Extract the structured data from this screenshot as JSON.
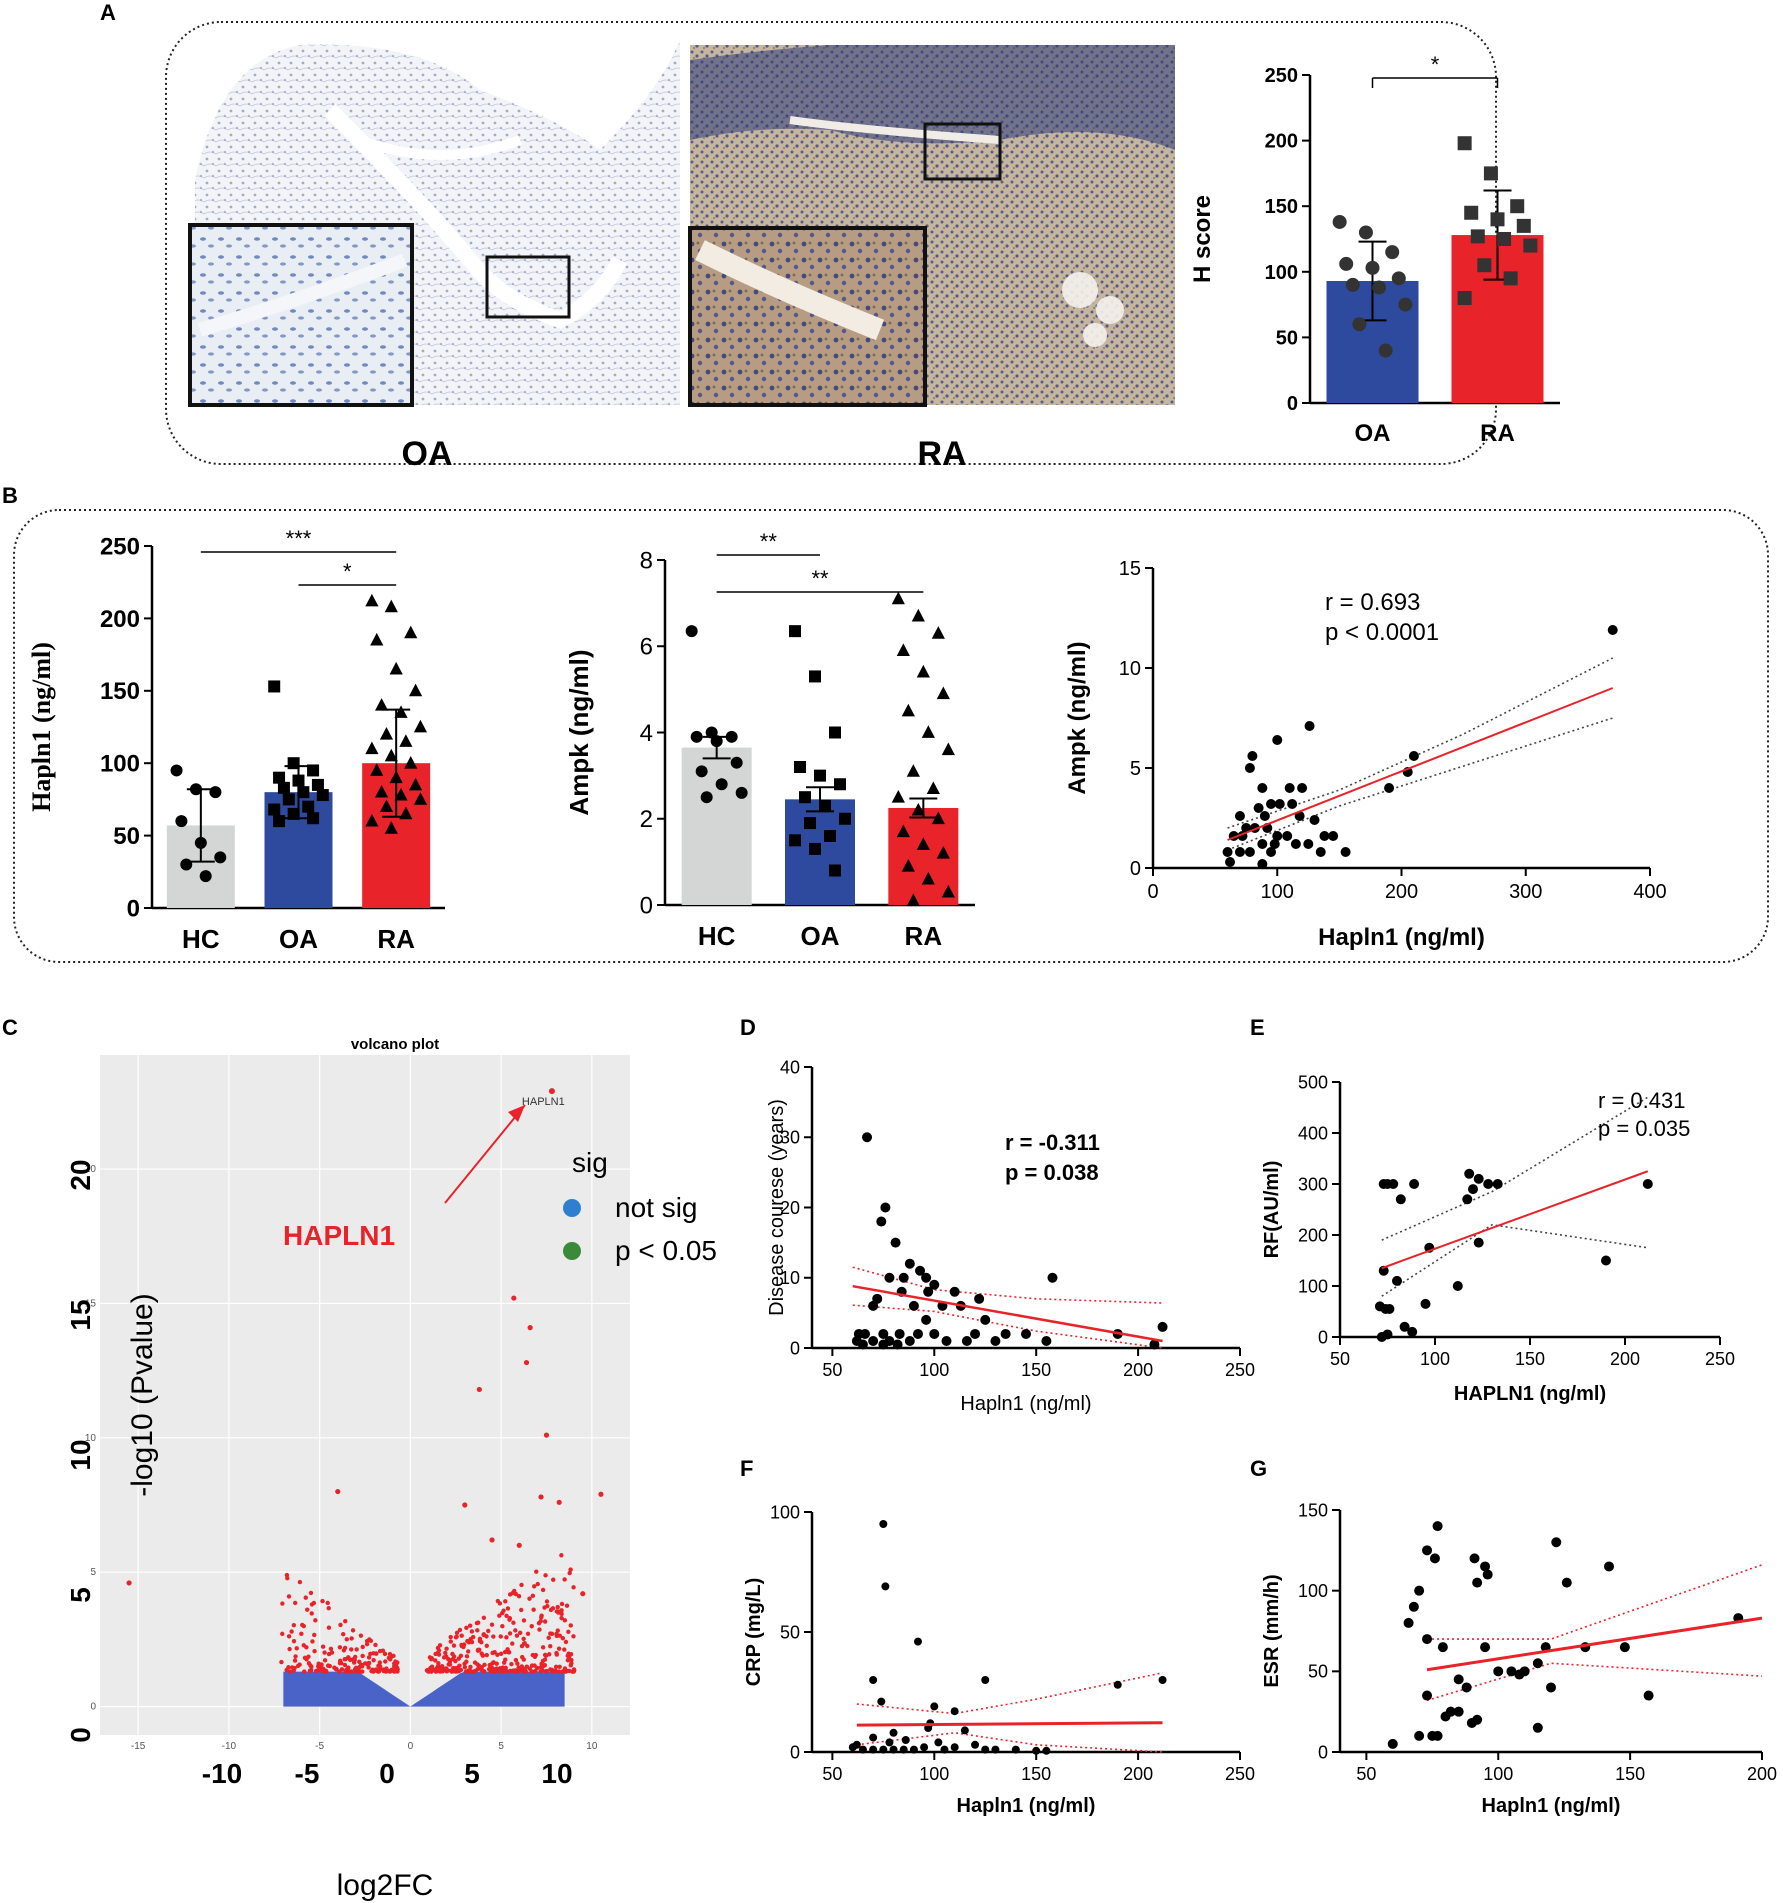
{
  "panel_letters": {
    "A": "A",
    "B": "B",
    "C": "C",
    "D": "D",
    "E": "E",
    "F": "F",
    "G": "G"
  },
  "colors": {
    "oa_blue": "#2e4a9e",
    "ra_red": "#e8232a",
    "hc_gray": "#d4d6d6",
    "sig_red": "#e8232a",
    "nonsig_blue": "#4a63c8",
    "legend_blue": "#2f7fd0",
    "legend_green": "#3a8a3a",
    "plot_bg": "#ebebeb"
  },
  "panel_a": {
    "image_labels": [
      "OA",
      "RA"
    ],
    "chart_data": {
      "type": "bar",
      "ylabel": "H score",
      "categories": [
        "OA",
        "RA"
      ],
      "means": [
        93,
        128
      ],
      "sd": [
        30,
        34
      ],
      "ylim": [
        0,
        250
      ],
      "yticks": [
        0,
        50,
        100,
        150,
        200,
        250
      ],
      "points": {
        "OA": [
          138,
          130,
          115,
          106,
          103,
          95,
          90,
          88,
          75,
          60,
          40
        ],
        "RA": [
          198,
          175,
          150,
          145,
          140,
          135,
          127,
          125,
          120,
          105,
          95,
          80
        ]
      },
      "significance": [
        {
          "pair": [
            "OA",
            "RA"
          ],
          "label": "*"
        }
      ]
    }
  },
  "panel_b1": {
    "chart_data": {
      "type": "bar",
      "ylabel": "Hapln1 (ng/ml)",
      "categories": [
        "HC",
        "OA",
        "RA"
      ],
      "means": [
        57,
        80,
        100
      ],
      "sem": [
        25,
        18,
        37
      ],
      "ylim": [
        0,
        250
      ],
      "yticks": [
        0,
        50,
        100,
        150,
        200,
        250
      ],
      "points": {
        "HC": [
          95,
          82,
          80,
          60,
          45,
          35,
          30,
          22
        ],
        "OA": [
          153,
          100,
          95,
          90,
          88,
          85,
          83,
          80,
          78,
          75,
          70,
          68,
          65,
          62,
          60
        ],
        "RA": [
          212,
          208,
          190,
          185,
          165,
          150,
          140,
          135,
          125,
          120,
          115,
          110,
          105,
          100,
          95,
          90,
          85,
          80,
          78,
          75,
          70,
          65,
          60,
          55
        ]
      },
      "significance": [
        {
          "pair": [
            "HC",
            "RA"
          ],
          "label": "***"
        },
        {
          "pair": [
            "OA",
            "RA"
          ],
          "label": "*"
        }
      ]
    }
  },
  "panel_b2": {
    "chart_data": {
      "type": "bar",
      "ylabel": "Ampk (ng/ml)",
      "categories": [
        "HC",
        "OA",
        "RA"
      ],
      "means": [
        3.65,
        2.45,
        2.25
      ],
      "sem": [
        0.25,
        0.28,
        0.22
      ],
      "ylim": [
        0,
        8
      ],
      "yticks": [
        0,
        2,
        4,
        6,
        8
      ],
      "points": {
        "HC": [
          6.35,
          4.0,
          3.9,
          3.9,
          3.8,
          3.3,
          3.1,
          2.8,
          2.6,
          2.5
        ],
        "OA": [
          6.35,
          5.3,
          4.0,
          3.2,
          3.0,
          2.8,
          2.5,
          2.3,
          2.0,
          1.9,
          1.6,
          1.5,
          1.3,
          0.8
        ],
        "RA": [
          7.1,
          6.7,
          6.3,
          5.9,
          5.4,
          4.9,
          4.5,
          4.0,
          3.6,
          3.1,
          2.7,
          2.5,
          2.2,
          2.0,
          1.7,
          1.4,
          1.2,
          0.9,
          0.6,
          0.3,
          0.1
        ]
      },
      "significance": [
        {
          "pair": [
            "HC",
            "OA"
          ],
          "label": "**"
        },
        {
          "pair": [
            "HC",
            "RA"
          ],
          "label": "**"
        }
      ]
    }
  },
  "panel_b3": {
    "stats": [
      "r = 0.693",
      "p < 0.0001"
    ],
    "chart_data": {
      "type": "scatter",
      "xlabel": "Hapln1 (ng/ml)",
      "ylabel": "Ampk (ng/ml)",
      "xlim": [
        0,
        400
      ],
      "ylim": [
        0,
        15
      ],
      "xticks": [
        0,
        100,
        200,
        300,
        400
      ],
      "yticks": [
        0,
        5,
        10,
        15
      ],
      "points": [
        [
          370,
          11.9
        ],
        [
          210,
          5.6
        ],
        [
          205,
          4.8
        ],
        [
          190,
          4.0
        ],
        [
          126,
          7.1
        ],
        [
          100,
          6.4
        ],
        [
          80,
          5.6
        ],
        [
          78,
          5.0
        ],
        [
          88,
          4.0
        ],
        [
          110,
          4.0
        ],
        [
          120,
          4.0
        ],
        [
          95,
          3.2
        ],
        [
          102,
          3.2
        ],
        [
          112,
          3.2
        ],
        [
          85,
          3.0
        ],
        [
          70,
          2.6
        ],
        [
          90,
          2.6
        ],
        [
          118,
          2.6
        ],
        [
          130,
          2.4
        ],
        [
          75,
          2.0
        ],
        [
          82,
          2.0
        ],
        [
          92,
          2.0
        ],
        [
          100,
          1.6
        ],
        [
          108,
          1.6
        ],
        [
          138,
          1.6
        ],
        [
          145,
          1.6
        ],
        [
          65,
          1.6
        ],
        [
          72,
          1.6
        ],
        [
          88,
          1.2
        ],
        [
          98,
          1.2
        ],
        [
          115,
          1.2
        ],
        [
          125,
          1.2
        ],
        [
          155,
          0.8
        ],
        [
          60,
          0.8
        ],
        [
          70,
          0.8
        ],
        [
          78,
          0.8
        ],
        [
          95,
          0.8
        ],
        [
          135,
          0.8
        ],
        [
          88,
          0.2
        ],
        [
          62,
          0.3
        ]
      ],
      "fit": {
        "x": [
          60,
          370
        ],
        "y": [
          1.4,
          9.0
        ]
      },
      "ci_upper": {
        "x": [
          60,
          150,
          250,
          370
        ],
        "y": [
          2.0,
          3.9,
          6.7,
          10.5
        ]
      },
      "ci_lower": {
        "x": [
          60,
          150,
          250,
          370
        ],
        "y": [
          0.9,
          3.1,
          5.1,
          7.5
        ]
      }
    }
  },
  "panel_c": {
    "title": "volcano plot",
    "ylabel": "-log10 (Pvalue)",
    "xlabel": "log2FC",
    "callout": "HAPLN1",
    "point_label": "HAPLN1",
    "legend": {
      "title": "sig",
      "items": [
        "not sig",
        "p < 0.05"
      ]
    },
    "outer_xticks": [
      "-10",
      "-5",
      "0",
      "5",
      "10"
    ],
    "outer_yticks": [
      "0",
      "5",
      "10",
      "15",
      "20"
    ],
    "inner_xticks": [
      "-15",
      "-10",
      "-5",
      "0",
      "5",
      "10"
    ],
    "inner_yticks": [
      "0",
      "5",
      "10",
      "15",
      "20"
    ],
    "chart_data": {
      "type": "scatter",
      "xlim": [
        -16,
        11
      ],
      "ylim": [
        -0.5,
        23.5
      ],
      "highlight": {
        "name": "HAPLN1",
        "x": 7.8,
        "y": 22.9
      },
      "notable_points": [
        [
          -15.5,
          4.6
        ],
        [
          -4,
          8.0
        ],
        [
          3.8,
          11.8
        ],
        [
          5.7,
          15.2
        ],
        [
          6.6,
          14.1
        ],
        [
          6.4,
          12.8
        ],
        [
          7.5,
          10.1
        ],
        [
          7.2,
          7.8
        ],
        [
          10.5,
          7.9
        ],
        [
          8.2,
          7.6
        ],
        [
          6,
          6.0
        ],
        [
          3.0,
          7.5
        ],
        [
          4.5,
          6.2
        ],
        [
          9.5,
          4.2
        ]
      ]
    }
  },
  "panel_d": {
    "stats": [
      "r = -0.311",
      "p = 0.038"
    ],
    "chart_data": {
      "type": "scatter",
      "xlabel": "Hapln1 (ng/ml)",
      "ylabel": "Disease courese (years)",
      "xlim": [
        40,
        250
      ],
      "ylim": [
        0,
        40
      ],
      "xticks": [
        50,
        100,
        150,
        200,
        250
      ],
      "yticks": [
        0,
        10,
        20,
        30,
        40
      ],
      "points": [
        [
          67,
          30
        ],
        [
          76,
          20
        ],
        [
          74,
          18
        ],
        [
          81,
          15
        ],
        [
          88,
          12
        ],
        [
          93,
          11
        ],
        [
          96,
          10
        ],
        [
          78,
          10
        ],
        [
          85,
          10
        ],
        [
          100,
          9
        ],
        [
          110,
          8
        ],
        [
          122,
          7
        ],
        [
          72,
          7
        ],
        [
          84,
          8
        ],
        [
          97,
          8
        ],
        [
          70,
          6
        ],
        [
          90,
          6
        ],
        [
          104,
          6
        ],
        [
          113,
          6
        ],
        [
          125,
          4
        ],
        [
          63,
          2
        ],
        [
          66,
          2
        ],
        [
          75,
          2
        ],
        [
          83,
          2
        ],
        [
          92,
          2
        ],
        [
          100,
          2
        ],
        [
          120,
          2
        ],
        [
          135,
          2
        ],
        [
          145,
          2
        ],
        [
          62,
          1
        ],
        [
          70,
          1
        ],
        [
          78,
          1
        ],
        [
          88,
          1
        ],
        [
          106,
          1
        ],
        [
          116,
          1
        ],
        [
          130,
          1
        ],
        [
          155,
          1
        ],
        [
          158,
          10
        ],
        [
          190,
          2
        ],
        [
          208,
          0.5
        ],
        [
          212,
          3
        ],
        [
          65,
          0.5
        ],
        [
          75,
          0.5
        ],
        [
          82,
          0.5
        ],
        [
          96,
          4
        ]
      ],
      "fit": {
        "x": [
          60,
          212
        ],
        "y": [
          8.8,
          1.0
        ]
      },
      "ci_upper": {
        "x": [
          60,
          100,
          150,
          212
        ],
        "y": [
          11.5,
          8.3,
          7.0,
          6.4
        ]
      },
      "ci_lower": {
        "x": [
          60,
          100,
          150,
          212
        ],
        "y": [
          6.1,
          5.2,
          2.4,
          -4.2
        ]
      }
    }
  },
  "panel_e": {
    "stats": [
      "r = 0.431",
      "p = 0.035"
    ],
    "chart_data": {
      "type": "scatter",
      "xlabel": "HAPLN1 (ng/ml)",
      "ylabel": "RF(AU/ml)",
      "xlim": [
        50,
        250
      ],
      "ylim": [
        0,
        500
      ],
      "xticks": [
        50,
        100,
        150,
        200,
        250
      ],
      "yticks": [
        0,
        100,
        200,
        300,
        400,
        500
      ],
      "points": [
        [
          73,
          300
        ],
        [
          75,
          300
        ],
        [
          78,
          300
        ],
        [
          89,
          300
        ],
        [
          118,
          320
        ],
        [
          123,
          310
        ],
        [
          128,
          300
        ],
        [
          133,
          300
        ],
        [
          120,
          290
        ],
        [
          82,
          270
        ],
        [
          117,
          270
        ],
        [
          97,
          175
        ],
        [
          123,
          185
        ],
        [
          73,
          130
        ],
        [
          212,
          300
        ],
        [
          190,
          150
        ],
        [
          112,
          100
        ],
        [
          71,
          60
        ],
        [
          74,
          55
        ],
        [
          76,
          55
        ],
        [
          95,
          65
        ],
        [
          80,
          110
        ],
        [
          84,
          20
        ],
        [
          88,
          10
        ],
        [
          75,
          5
        ],
        [
          72,
          0
        ]
      ],
      "fit": {
        "x": [
          72,
          212
        ],
        "y": [
          135,
          325
        ]
      },
      "ci_upper": {
        "x": [
          72,
          130,
          212
        ],
        "y": [
          190,
          285,
          470
        ]
      },
      "ci_lower": {
        "x": [
          72,
          130,
          212
        ],
        "y": [
          80,
          220,
          175
        ]
      }
    }
  },
  "panel_f": {
    "chart_data": {
      "type": "scatter",
      "xlabel": "Hapln1 (ng/ml)",
      "ylabel": "CRP (mg/L)",
      "xlim": [
        40,
        250
      ],
      "ylim": [
        0,
        100
      ],
      "xticks": [
        50,
        100,
        150,
        200,
        250
      ],
      "yticks": [
        0,
        50,
        100
      ],
      "points": [
        [
          75,
          95
        ],
        [
          76,
          69
        ],
        [
          92,
          46
        ],
        [
          70,
          30
        ],
        [
          125,
          30
        ],
        [
          212,
          30
        ],
        [
          190,
          28
        ],
        [
          100,
          19
        ],
        [
          74,
          21
        ],
        [
          110,
          17
        ],
        [
          98,
          12
        ],
        [
          97,
          10
        ],
        [
          80,
          8
        ],
        [
          115,
          9
        ],
        [
          70,
          6
        ],
        [
          86,
          5
        ],
        [
          102,
          4
        ],
        [
          120,
          3
        ],
        [
          60,
          2
        ],
        [
          65,
          1
        ],
        [
          70,
          1
        ],
        [
          75,
          1
        ],
        [
          80,
          1
        ],
        [
          85,
          1
        ],
        [
          90,
          1
        ],
        [
          95,
          2
        ],
        [
          105,
          1
        ],
        [
          110,
          2
        ],
        [
          125,
          1
        ],
        [
          130,
          1
        ],
        [
          140,
          1
        ],
        [
          150,
          0.5
        ],
        [
          155,
          0.5
        ],
        [
          62,
          3
        ],
        [
          78,
          4
        ]
      ],
      "fit": {
        "x": [
          62,
          212
        ],
        "y": [
          11.2,
          12.2
        ]
      },
      "ci_upper": {
        "x": [
          62,
          110,
          150,
          212
        ],
        "y": [
          20,
          16,
          22,
          33
        ]
      },
      "ci_lower": {
        "x": [
          62,
          110,
          150,
          212
        ],
        "y": [
          3,
          8,
          3,
          -9
        ]
      }
    }
  },
  "panel_g": {
    "chart_data": {
      "type": "scatter",
      "xlabel": "Hapln1 (ng/ml)",
      "ylabel": "ESR (mm/h)",
      "xlim": [
        40,
        200
      ],
      "ylim": [
        0,
        150
      ],
      "xticks": [
        50,
        100,
        150,
        200
      ],
      "yticks": [
        0,
        50,
        100,
        150
      ],
      "points": [
        [
          77,
          140
        ],
        [
          73,
          125
        ],
        [
          76,
          120
        ],
        [
          91,
          120
        ],
        [
          95,
          115
        ],
        [
          122,
          130
        ],
        [
          142,
          115
        ],
        [
          70,
          100
        ],
        [
          92,
          105
        ],
        [
          96,
          110
        ],
        [
          126,
          105
        ],
        [
          68,
          90
        ],
        [
          66,
          80
        ],
        [
          73,
          70
        ],
        [
          79,
          65
        ],
        [
          95,
          65
        ],
        [
          133,
          65
        ],
        [
          148,
          65
        ],
        [
          118,
          65
        ],
        [
          100,
          50
        ],
        [
          105,
          50
        ],
        [
          110,
          50
        ],
        [
          115,
          55
        ],
        [
          108,
          48
        ],
        [
          85,
          45
        ],
        [
          88,
          40
        ],
        [
          120,
          40
        ],
        [
          73,
          35
        ],
        [
          157,
          35
        ],
        [
          82,
          25
        ],
        [
          85,
          25
        ],
        [
          92,
          20
        ],
        [
          90,
          18
        ],
        [
          80,
          22
        ],
        [
          115,
          15
        ],
        [
          75,
          10
        ],
        [
          77,
          10
        ],
        [
          70,
          10
        ],
        [
          60,
          5
        ],
        [
          191,
          83
        ]
      ],
      "fit": {
        "x": [
          73,
          200
        ],
        "y": [
          51,
          83
        ]
      },
      "ci_upper": {
        "x": [
          73,
          120,
          200
        ],
        "y": [
          70,
          70,
          116
        ]
      },
      "ci_lower": {
        "x": [
          73,
          120,
          200
        ],
        "y": [
          32,
          55,
          47
        ]
      }
    }
  }
}
